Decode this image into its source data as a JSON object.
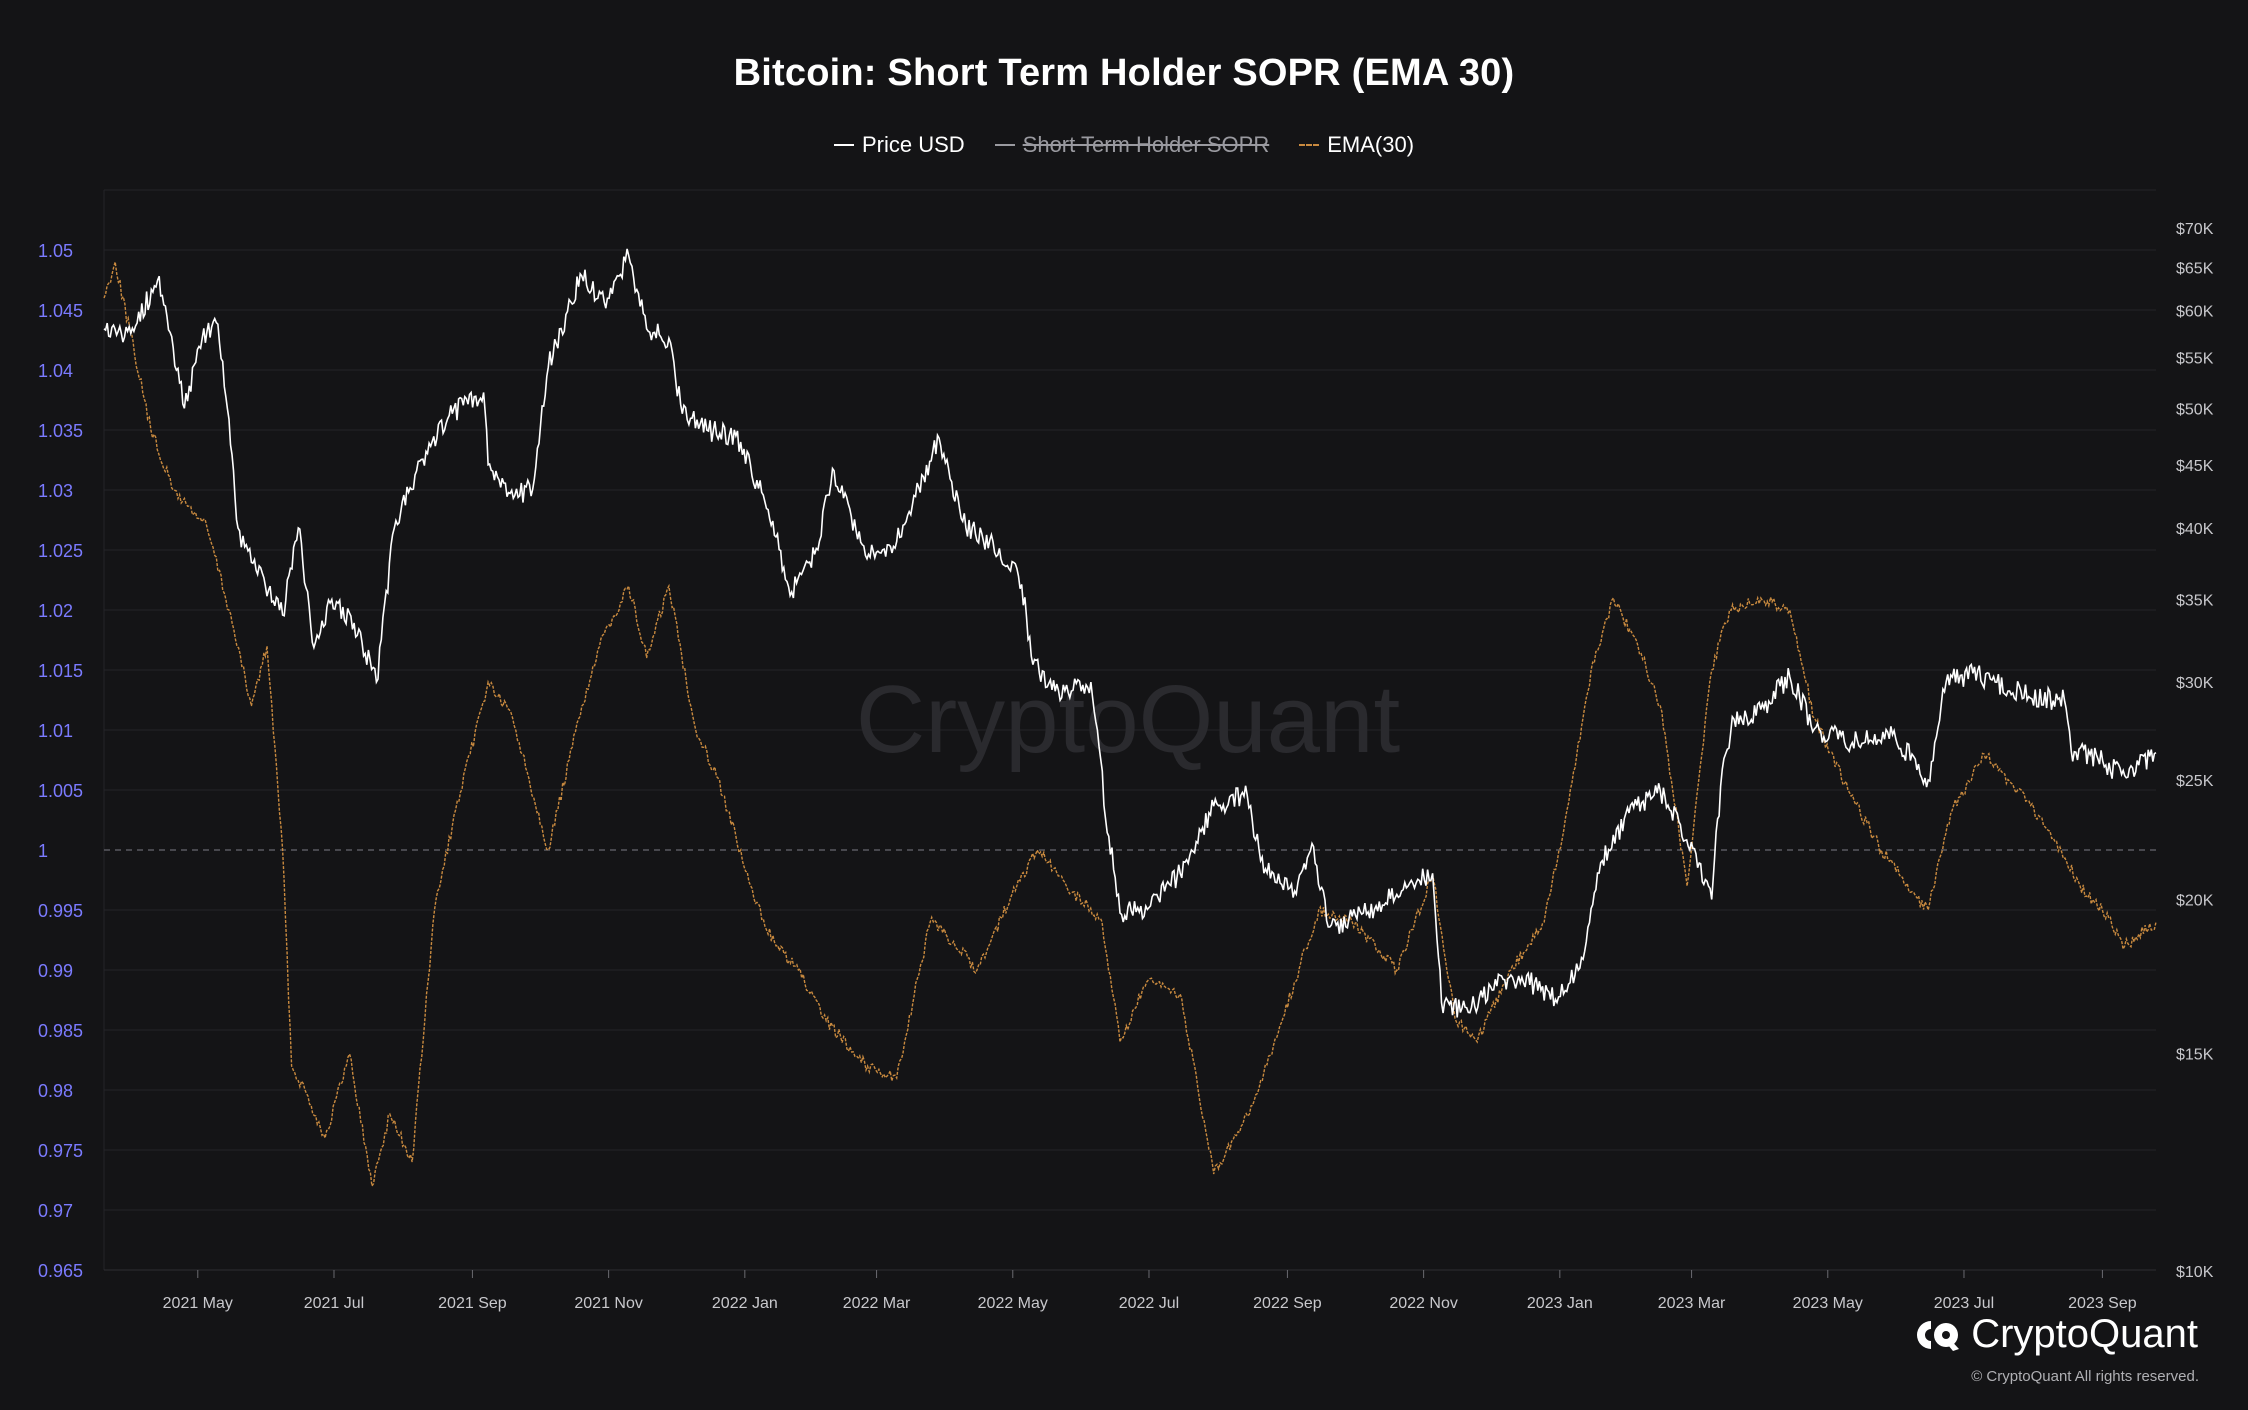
{
  "chart_data": {
    "type": "line",
    "title": "Bitcoin: Short Term Holder SOPR (EMA 30)",
    "legend": [
      {
        "name": "Price USD",
        "style": "solid",
        "color": "#ffffff",
        "visible": true
      },
      {
        "name": "Short Term Holder SOPR",
        "style": "solid",
        "color": "#9a9aa0",
        "visible": false
      },
      {
        "name": "EMA(30)",
        "style": "dashed",
        "color": "#c98a3f",
        "visible": true
      }
    ],
    "legend_placement": "top-center",
    "x_range": [
      "2021-03-20",
      "2023-09-25"
    ],
    "x_ticks": [
      {
        "date": "2021-05-01",
        "label": "2021 May"
      },
      {
        "date": "2021-07-01",
        "label": "2021 Jul"
      },
      {
        "date": "2021-09-01",
        "label": "2021 Sep"
      },
      {
        "date": "2021-11-01",
        "label": "2021 Nov"
      },
      {
        "date": "2022-01-01",
        "label": "2022 Jan"
      },
      {
        "date": "2022-03-01",
        "label": "2022 Mar"
      },
      {
        "date": "2022-05-01",
        "label": "2022 May"
      },
      {
        "date": "2022-07-01",
        "label": "2022 Jul"
      },
      {
        "date": "2022-09-01",
        "label": "2022 Sep"
      },
      {
        "date": "2022-11-01",
        "label": "2022 Nov"
      },
      {
        "date": "2023-01-01",
        "label": "2023 Jan"
      },
      {
        "date": "2023-03-01",
        "label": "2023 Mar"
      },
      {
        "date": "2023-05-01",
        "label": "2023 May"
      },
      {
        "date": "2023-07-01",
        "label": "2023 Jul"
      },
      {
        "date": "2023-09-01",
        "label": "2023 Sep"
      }
    ],
    "y_left": {
      "ylim": [
        0.965,
        1.05
      ],
      "ticks": [
        1.05,
        1.045,
        1.04,
        1.035,
        1.03,
        1.025,
        1.02,
        1.015,
        1.01,
        1.005,
        1,
        0.995,
        0.99,
        0.985,
        0.98,
        0.975,
        0.97,
        0.965
      ],
      "tick_labels": [
        "1.05",
        "1.045",
        "1.04",
        "1.035",
        "1.03",
        "1.025",
        "1.02",
        "1.015",
        "1.01",
        "1.005",
        "1",
        "0.995",
        "0.99",
        "0.985",
        "0.98",
        "0.975",
        "0.97",
        "0.965"
      ],
      "color": "#7b7bff",
      "reference_line": 1
    },
    "y_right": {
      "scale": "log",
      "ylim": [
        10000,
        70000
      ],
      "ticks": [
        70000,
        65000,
        60000,
        55000,
        50000,
        45000,
        40000,
        35000,
        30000,
        25000,
        20000,
        15000,
        10000
      ],
      "tick_labels": [
        "$70K",
        "$65K",
        "$60K",
        "$55K",
        "$50K",
        "$45K",
        "$40K",
        "$35K",
        "$30K",
        "$25K",
        "$20K",
        "$15K",
        "$10K"
      ],
      "color": "#c8c8cc"
    },
    "grid": true,
    "series": [
      {
        "name": "Price USD",
        "axis": "right",
        "x": [
          "2021-03-20",
          "2021-04-01",
          "2021-04-13",
          "2021-04-20",
          "2021-04-25",
          "2021-05-03",
          "2021-05-10",
          "2021-05-15",
          "2021-05-19",
          "2021-05-25",
          "2021-06-08",
          "2021-06-15",
          "2021-06-22",
          "2021-06-30",
          "2021-07-10",
          "2021-07-20",
          "2021-07-28",
          "2021-08-07",
          "2021-08-14",
          "2021-08-23",
          "2021-09-06",
          "2021-09-08",
          "2021-09-20",
          "2021-09-28",
          "2021-10-05",
          "2021-10-15",
          "2021-10-20",
          "2021-10-30",
          "2021-11-10",
          "2021-11-18",
          "2021-11-28",
          "2021-12-04",
          "2021-12-15",
          "2021-12-28",
          "2022-01-10",
          "2022-01-22",
          "2022-02-02",
          "2022-02-10",
          "2022-02-24",
          "2022-03-10",
          "2022-03-29",
          "2022-04-10",
          "2022-04-25",
          "2022-05-05",
          "2022-05-10",
          "2022-05-20",
          "2022-06-05",
          "2022-06-13",
          "2022-06-18",
          "2022-07-01",
          "2022-07-15",
          "2022-07-30",
          "2022-08-14",
          "2022-08-20",
          "2022-09-05",
          "2022-09-12",
          "2022-09-20",
          "2022-10-05",
          "2022-10-25",
          "2022-11-05",
          "2022-11-09",
          "2022-11-21",
          "2022-12-01",
          "2022-12-15",
          "2022-12-30",
          "2023-01-10",
          "2023-01-20",
          "2023-02-01",
          "2023-02-15",
          "2023-02-24",
          "2023-03-10",
          "2023-03-14",
          "2023-03-20",
          "2023-04-01",
          "2023-04-14",
          "2023-04-25",
          "2023-05-12",
          "2023-05-30",
          "2023-06-15",
          "2023-06-23",
          "2023-07-05",
          "2023-07-15",
          "2023-07-30",
          "2023-08-15",
          "2023-08-18",
          "2023-08-30",
          "2023-09-11",
          "2023-09-25"
        ],
        "values": [
          58000,
          57500,
          63500,
          56000,
          50000,
          57000,
          58500,
          49000,
          40000,
          37500,
          34000,
          40000,
          32000,
          35000,
          33500,
          30000,
          40000,
          44500,
          47000,
          49500,
          51500,
          45000,
          42500,
          43000,
          54000,
          61000,
          64000,
          61000,
          66500,
          58000,
          57000,
          49500,
          48000,
          47500,
          42000,
          35500,
          38500,
          44500,
          38000,
          39000,
          47300,
          40000,
          38500,
          36000,
          31000,
          29500,
          30000,
          22500,
          19500,
          19700,
          21000,
          23800,
          24300,
          21500,
          20200,
          22200,
          19000,
          19500,
          20500,
          21000,
          16500,
          16200,
          17000,
          17300,
          16600,
          17600,
          21500,
          23500,
          24500,
          23000,
          20000,
          24700,
          28000,
          28500,
          30300,
          27500,
          26800,
          27200,
          25000,
          30000,
          30500,
          30000,
          29200,
          29000,
          26400,
          26000,
          25200,
          26300
        ]
      },
      {
        "name": "EMA(30)",
        "axis": "left",
        "x": [
          "2021-03-20",
          "2021-03-25",
          "2021-04-10",
          "2021-04-20",
          "2021-05-05",
          "2021-05-15",
          "2021-05-25",
          "2021-06-01",
          "2021-06-08",
          "2021-06-12",
          "2021-06-18",
          "2021-06-27",
          "2021-07-08",
          "2021-07-18",
          "2021-07-26",
          "2021-08-05",
          "2021-08-15",
          "2021-08-23",
          "2021-09-08",
          "2021-09-19",
          "2021-10-05",
          "2021-10-20",
          "2021-10-30",
          "2021-11-10",
          "2021-11-18",
          "2021-11-28",
          "2021-12-10",
          "2021-12-20",
          "2022-01-05",
          "2022-01-15",
          "2022-01-25",
          "2022-02-05",
          "2022-02-25",
          "2022-03-10",
          "2022-03-25",
          "2022-04-01",
          "2022-04-15",
          "2022-04-30",
          "2022-05-12",
          "2022-05-25",
          "2022-06-10",
          "2022-06-18",
          "2022-06-30",
          "2022-07-15",
          "2022-07-30",
          "2022-08-15",
          "2022-08-30",
          "2022-09-15",
          "2022-09-30",
          "2022-10-20",
          "2022-11-05",
          "2022-11-15",
          "2022-11-25",
          "2022-12-10",
          "2022-12-25",
          "2023-01-05",
          "2023-01-15",
          "2023-01-25",
          "2023-02-05",
          "2023-02-15",
          "2023-02-27",
          "2023-03-10",
          "2023-03-18",
          "2023-04-01",
          "2023-04-14",
          "2023-04-25",
          "2023-05-10",
          "2023-05-25",
          "2023-06-10",
          "2023-06-15",
          "2023-06-25",
          "2023-07-10",
          "2023-07-25",
          "2023-08-10",
          "2023-08-16",
          "2023-08-22",
          "2023-09-01",
          "2023-09-11",
          "2023-09-25"
        ],
        "values": [
          1.046,
          1.049,
          1.035,
          1.03,
          1.027,
          1.02,
          1.012,
          1.017,
          1.0,
          0.982,
          0.98,
          0.976,
          0.983,
          0.972,
          0.978,
          0.974,
          0.995,
          1.002,
          1.014,
          1.011,
          1.0,
          1.012,
          1.018,
          1.022,
          1.016,
          1.022,
          1.01,
          1.006,
          0.996,
          0.992,
          0.99,
          0.986,
          0.982,
          0.981,
          0.994,
          0.993,
          0.99,
          0.996,
          1.0,
          0.997,
          0.994,
          0.984,
          0.989,
          0.988,
          0.973,
          0.978,
          0.986,
          0.995,
          0.994,
          0.99,
          0.998,
          0.986,
          0.984,
          0.99,
          0.994,
          1.004,
          1.015,
          1.021,
          1.017,
          1.012,
          0.997,
          1.015,
          1.02,
          1.021,
          1.02,
          1.011,
          1.005,
          1.0,
          0.996,
          0.995,
          1.003,
          1.008,
          1.005,
          1.001,
          0.999,
          0.997,
          0.995,
          0.992,
          0.994
        ]
      }
    ]
  },
  "watermark": "CryptoQuant",
  "logo": {
    "text": "CryptoQuant",
    "icon": "cryptoquant-logo-icon"
  },
  "copyright": "© CryptoQuant All rights reserved."
}
